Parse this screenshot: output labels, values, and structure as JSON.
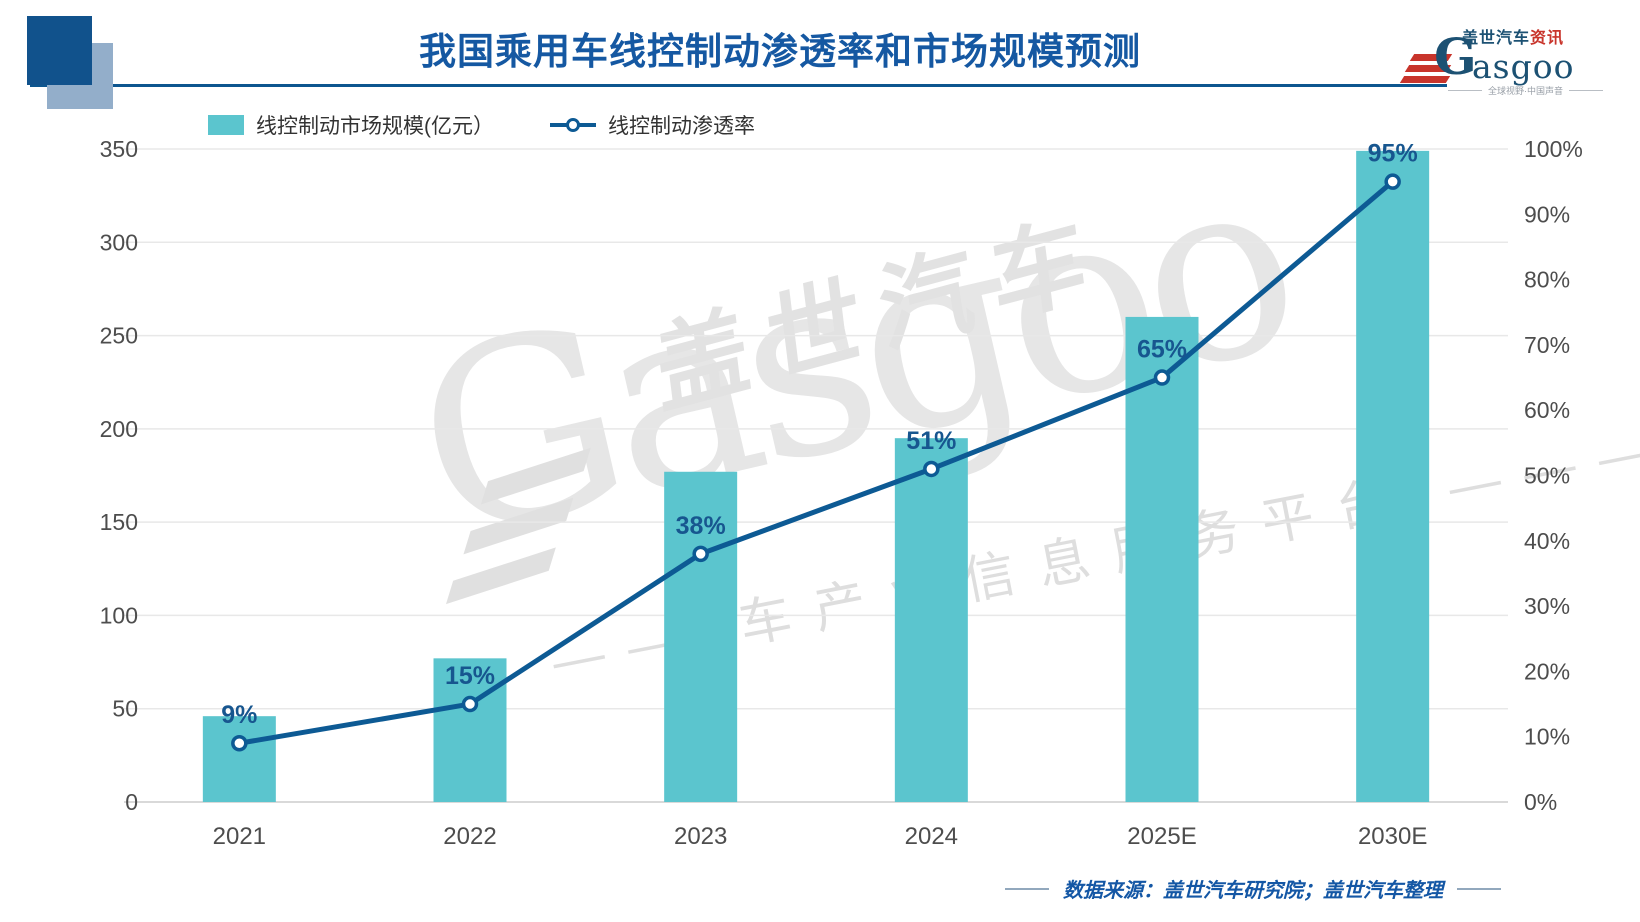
{
  "header": {
    "title": "我国乘用车线控制动渗透率和市场规模预测",
    "logo": {
      "brand_initial": "G",
      "brand_rest": "asgoo",
      "cn_blue": "盖世汽车",
      "cn_red": "资讯",
      "tagline": "全球视野·中国声音"
    }
  },
  "legend": {
    "bar_label": "线控制动市场规模(亿元）",
    "line_label": "线控制动渗透率"
  },
  "chart_data": {
    "type": "bar",
    "title": "我国乘用车线控制动渗透率和市场规模预测",
    "categories": [
      "2021",
      "2022",
      "2023",
      "2024",
      "2025E",
      "2030E"
    ],
    "series": [
      {
        "name": "线控制动市场规模(亿元）",
        "type": "bar",
        "axis": "left",
        "values": [
          46,
          77,
          177,
          195,
          260,
          349
        ],
        "color": "#5BC5CE"
      },
      {
        "name": "线控制动渗透率",
        "type": "line",
        "axis": "right",
        "values": [
          9,
          15,
          38,
          51,
          65,
          95
        ],
        "point_labels": [
          "9%",
          "15%",
          "38%",
          "51%",
          "65%",
          "95%"
        ],
        "color": "#0D5A94"
      }
    ],
    "left_axis": {
      "min": 0,
      "max": 350,
      "ticks": [
        "0",
        "50",
        "100",
        "150",
        "200",
        "250",
        "300",
        "350"
      ]
    },
    "right_axis": {
      "min": 0,
      "max": 100,
      "ticks": [
        "0%",
        "10%",
        "20%",
        "30%",
        "40%",
        "50%",
        "60%",
        "70%",
        "80%",
        "90%",
        "100%"
      ]
    },
    "grid": true,
    "legend_position": "top-left"
  },
  "watermark": {
    "cn": "盖世汽车",
    "en": "Gasgoo",
    "tagline": "—— 车产业信息服务平台 ————"
  },
  "footer": {
    "source": "数据来源：盖世汽车研究院；盖世汽车整理"
  },
  "colors": {
    "title_blue": "#1558A2",
    "bar_teal": "#5BC5CE",
    "line_blue": "#0D5A94",
    "data_label_blue": "#17568F",
    "axis_text": "#4D4D4D",
    "gridline": "#E8E8E8",
    "baseline": "#D9D9D9",
    "logo_red": "#C8342B",
    "logo_blue": "#1C5173"
  }
}
